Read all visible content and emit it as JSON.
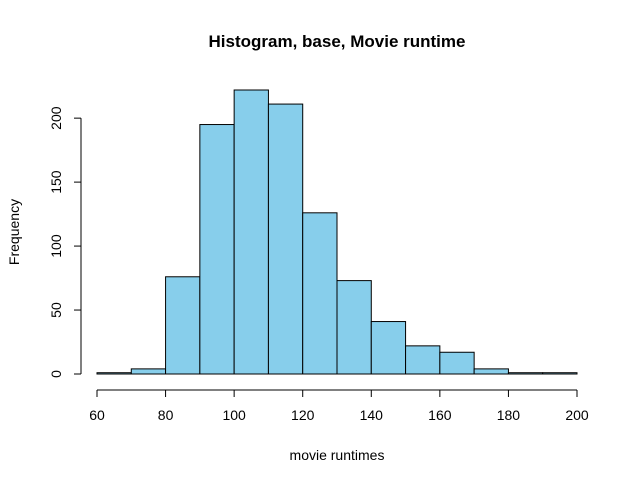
{
  "chart_data": {
    "type": "bar",
    "title": "Histogram, base, Movie runtime",
    "xlabel": "movie runtimes",
    "ylabel": "Frequency",
    "bins": [
      {
        "from": 60,
        "to": 70,
        "count": 1
      },
      {
        "from": 70,
        "to": 80,
        "count": 4
      },
      {
        "from": 80,
        "to": 90,
        "count": 76
      },
      {
        "from": 90,
        "to": 100,
        "count": 195
      },
      {
        "from": 100,
        "to": 110,
        "count": 222
      },
      {
        "from": 110,
        "to": 120,
        "count": 211
      },
      {
        "from": 120,
        "to": 130,
        "count": 126
      },
      {
        "from": 130,
        "to": 140,
        "count": 73
      },
      {
        "from": 140,
        "to": 150,
        "count": 41
      },
      {
        "from": 150,
        "to": 160,
        "count": 22
      },
      {
        "from": 160,
        "to": 170,
        "count": 17
      },
      {
        "from": 170,
        "to": 180,
        "count": 4
      },
      {
        "from": 180,
        "to": 190,
        "count": 1
      },
      {
        "from": 190,
        "to": 200,
        "count": 1
      }
    ],
    "xlim": [
      60,
      200
    ],
    "ylim": [
      0,
      222
    ],
    "x_ticks": [
      60,
      80,
      100,
      120,
      140,
      160,
      180,
      200
    ],
    "y_ticks": [
      0,
      50,
      100,
      150,
      200
    ],
    "bar_fill": "#87ceeb",
    "bar_stroke": "#000000",
    "grid": false,
    "legend": "none"
  }
}
